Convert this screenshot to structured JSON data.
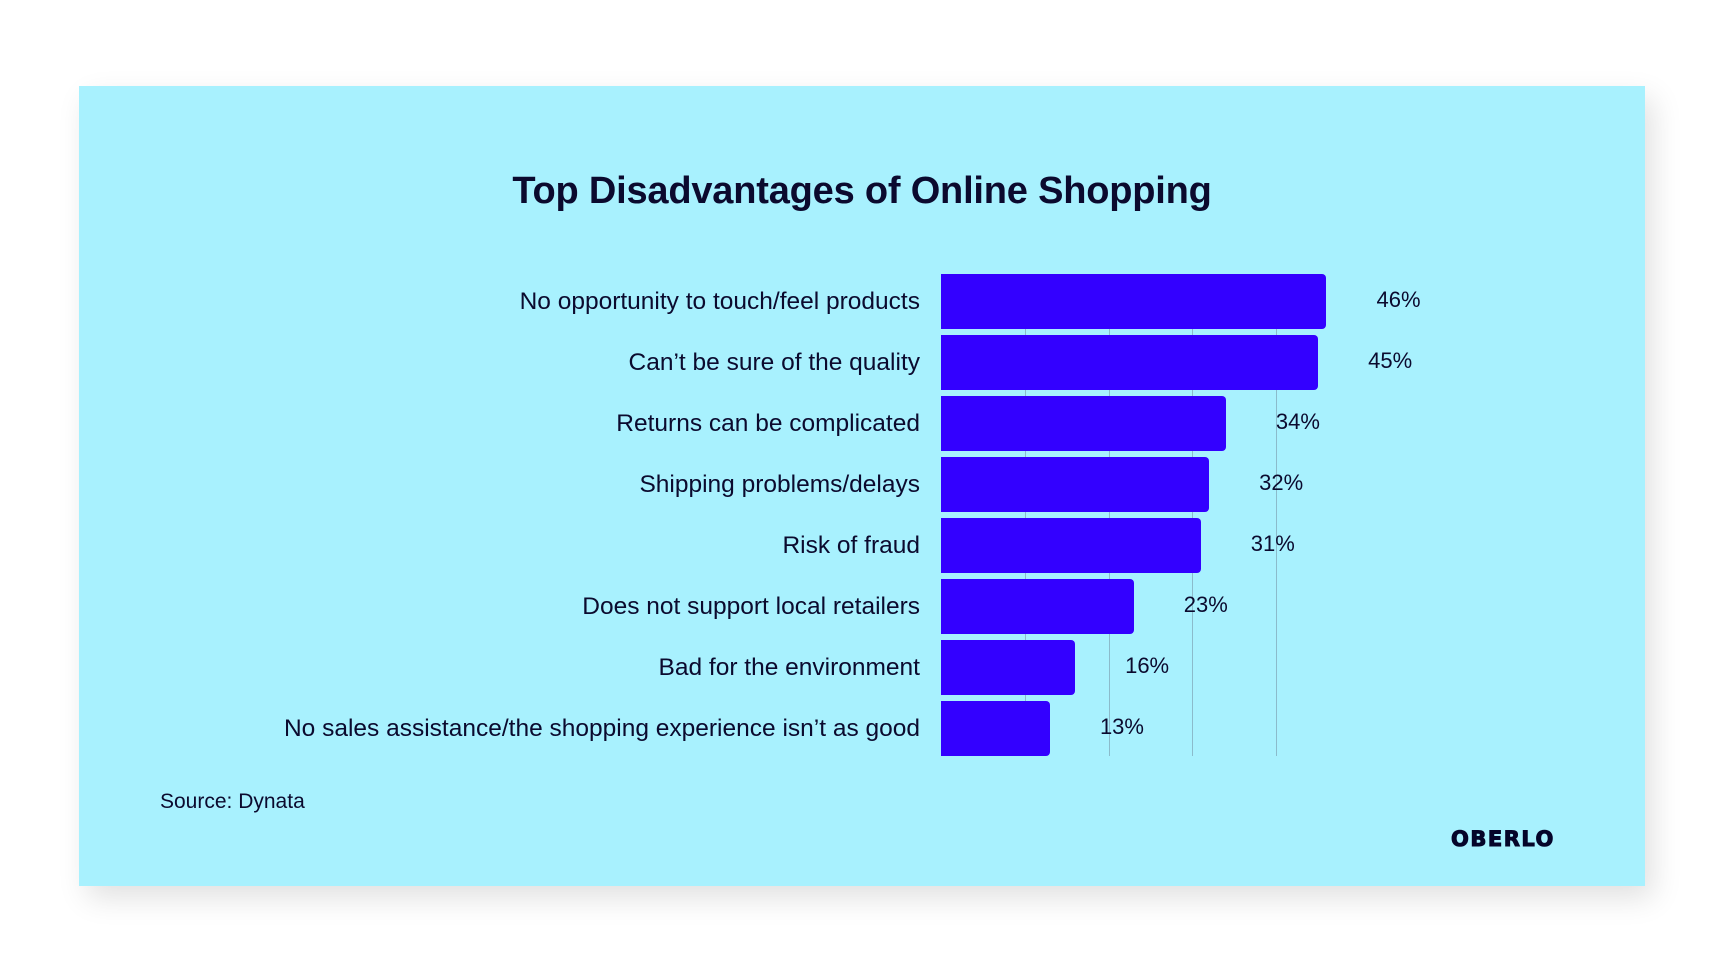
{
  "chart_data": {
    "type": "bar",
    "orientation": "horizontal",
    "title": "Top Disadvantages of Online Shopping",
    "categories": [
      "No opportunity to touch/feel products",
      "Can’t be sure of the quality",
      "Returns can be complicated",
      "Shipping problems/delays",
      "Risk of fraud",
      "Does not support local retailers",
      "Bad for the environment",
      "No sales assistance/the shopping experience isn’t as good"
    ],
    "values": [
      46,
      45,
      34,
      32,
      31,
      23,
      16,
      13
    ],
    "value_labels": [
      "46%",
      "45%",
      "34%",
      "32%",
      "31%",
      "23%",
      "16%",
      "13%"
    ],
    "xlabel": "",
    "ylabel": "",
    "xlim": [
      0,
      50
    ],
    "gridlines": [
      10,
      20,
      30,
      40
    ],
    "grid": true,
    "legend": null,
    "unit": "%",
    "source": "Source: Dynata"
  },
  "colors": {
    "background": "#A8F1FE",
    "bar": "#3300FF",
    "text": "#0B0A2E",
    "gridline": "#8BBBCB"
  },
  "footer": {
    "source": "Source: Dynata",
    "logo": "OBERLO"
  }
}
